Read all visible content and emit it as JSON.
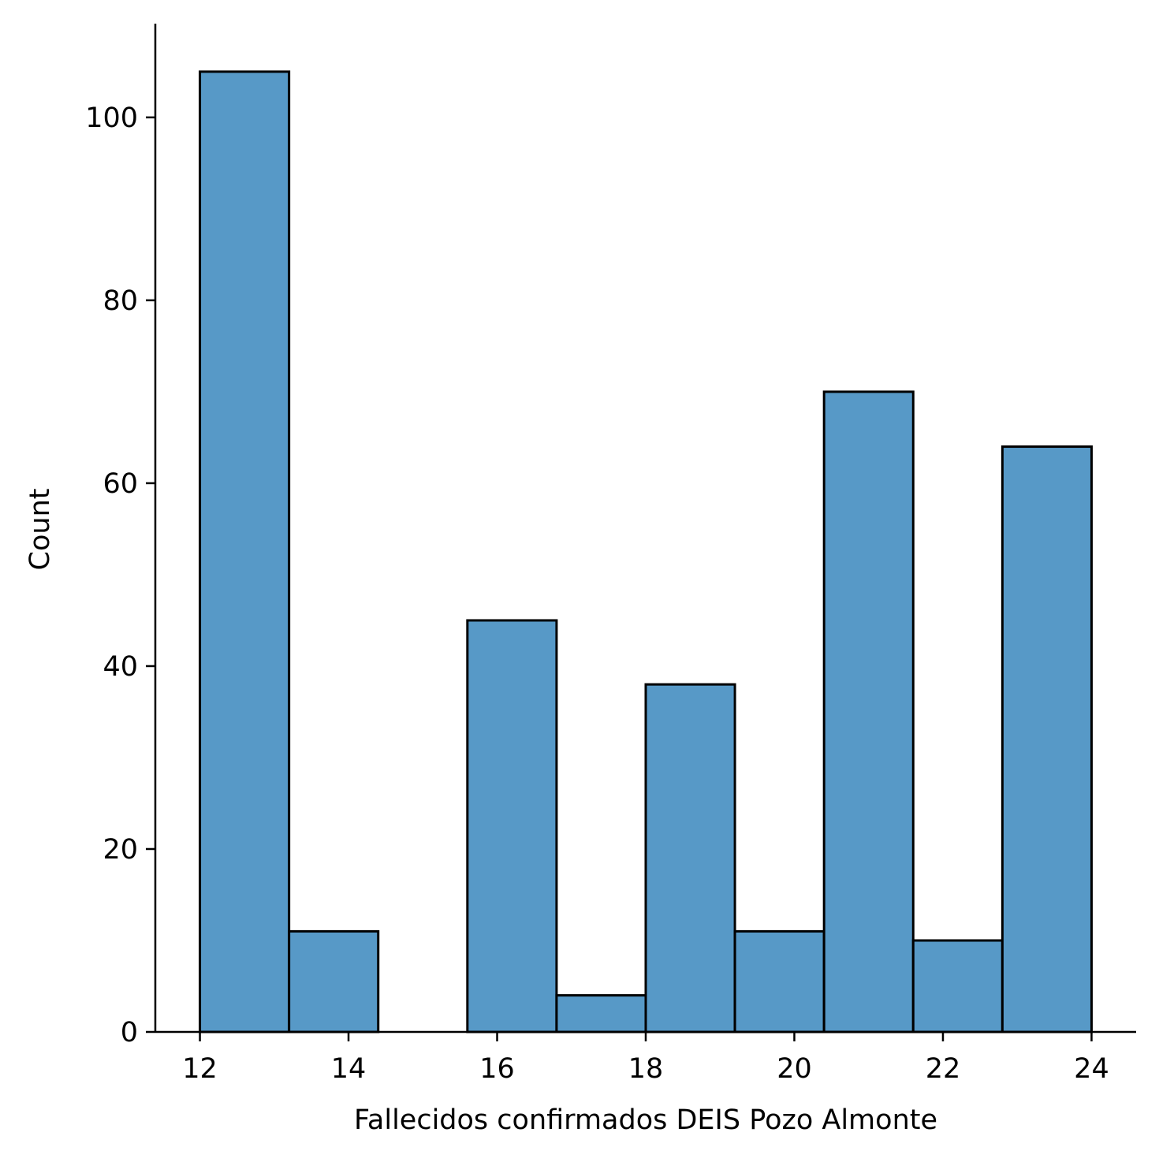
{
  "chart_data": {
    "type": "bar",
    "subtype": "histogram",
    "title": "",
    "xlabel": "Fallecidos confirmados DEIS Pozo Almonte",
    "ylabel": "Count",
    "bin_edges": [
      12.0,
      13.2,
      14.4,
      15.6,
      16.8,
      18.0,
      19.2,
      20.4,
      21.6,
      22.8,
      24.0
    ],
    "values": [
      105,
      11,
      0,
      45,
      4,
      38,
      11,
      70,
      10,
      64
    ],
    "xlim": [
      11.4,
      24.6
    ],
    "ylim": [
      0,
      110.25
    ],
    "xticks": [
      12,
      14,
      16,
      18,
      20,
      22,
      24
    ],
    "yticks": [
      0,
      20,
      40,
      60,
      80,
      100
    ],
    "bar_color": "#5799c7",
    "edge_color": "#000000",
    "grid": false,
    "legend": false,
    "spines": "left-bottom"
  }
}
